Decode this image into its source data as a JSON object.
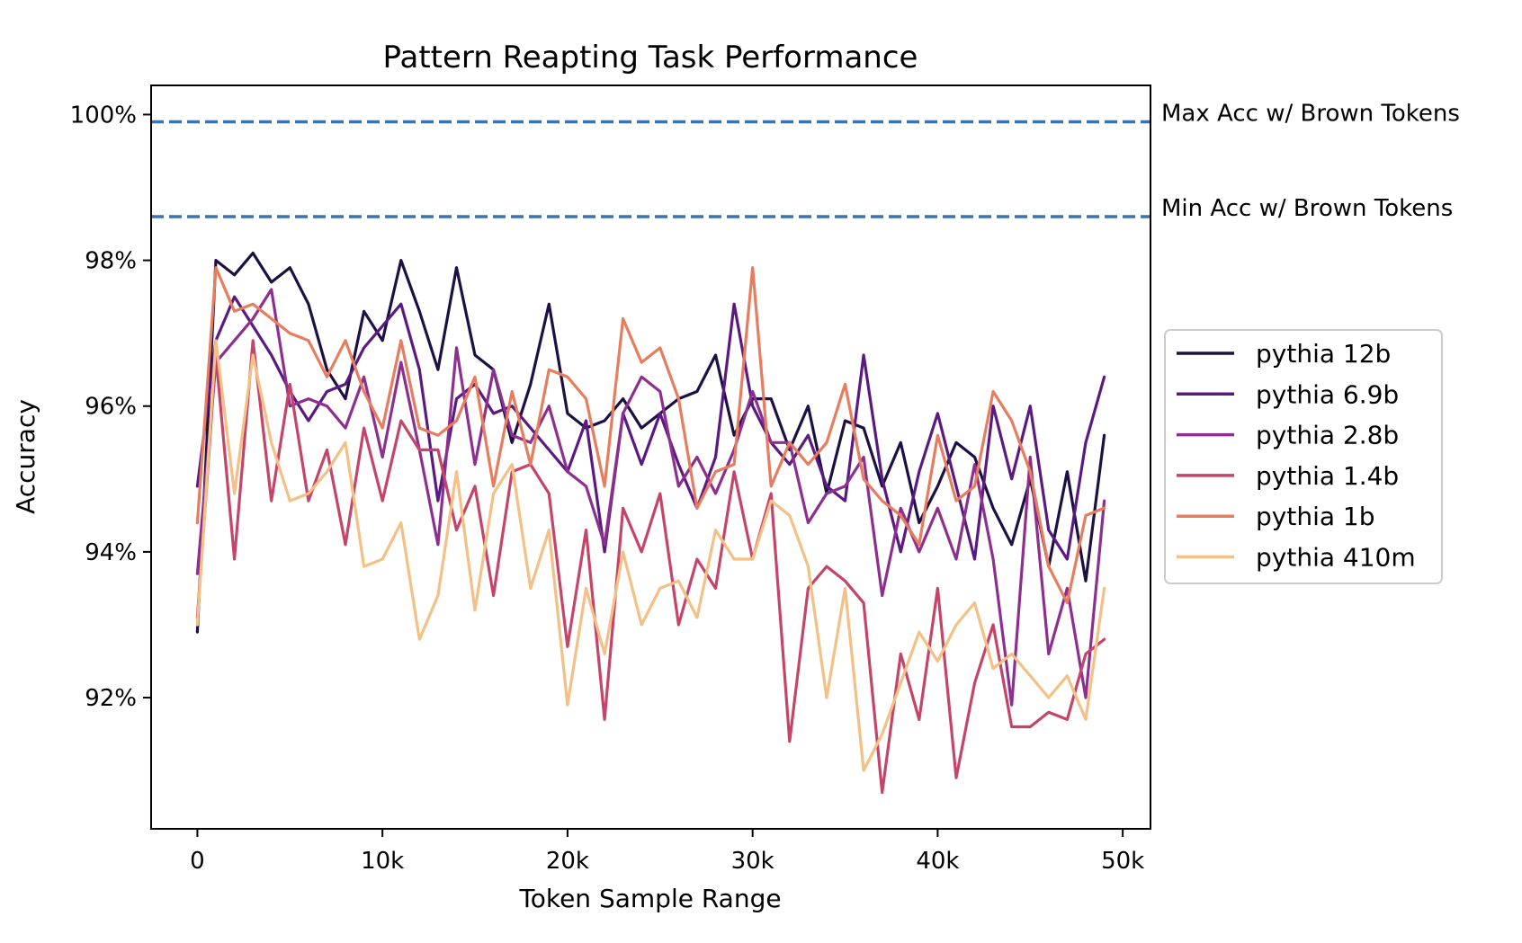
{
  "chart_data": {
    "type": "line",
    "title": "Pattern Reapting Task Performance",
    "xlabel": "Token Sample Range",
    "ylabel": "Accuracy",
    "xlim": [
      -2500,
      51500
    ],
    "ylim": [
      90.2,
      100.4
    ],
    "x_ticks": [
      {
        "value": 0,
        "label": "0"
      },
      {
        "value": 10000,
        "label": "10k"
      },
      {
        "value": 20000,
        "label": "20k"
      },
      {
        "value": 30000,
        "label": "30k"
      },
      {
        "value": 40000,
        "label": "40k"
      },
      {
        "value": 50000,
        "label": "50k"
      }
    ],
    "y_ticks": [
      {
        "value": 92,
        "label": "92%"
      },
      {
        "value": 94,
        "label": "94%"
      },
      {
        "value": 96,
        "label": "96%"
      },
      {
        "value": 98,
        "label": "98%"
      },
      {
        "value": 100,
        "label": "100%"
      }
    ],
    "grid": false,
    "legend_position": "center-right outside",
    "reference_lines": [
      {
        "label": "Max Acc w/ Brown Tokens",
        "value": 99.9,
        "color": "#3a74b0"
      },
      {
        "label": "Min Acc w/ Brown Tokens",
        "value": 98.6,
        "color": "#3a74b0"
      }
    ],
    "x": [
      0,
      1000,
      2000,
      3000,
      4000,
      5000,
      6000,
      7000,
      8000,
      9000,
      10000,
      11000,
      12000,
      13000,
      14000,
      15000,
      16000,
      17000,
      18000,
      19000,
      20000,
      21000,
      22000,
      23000,
      24000,
      25000,
      26000,
      27000,
      28000,
      29000,
      30000,
      31000,
      32000,
      33000,
      34000,
      35000,
      36000,
      37000,
      38000,
      39000,
      40000,
      41000,
      42000,
      43000,
      44000,
      45000,
      46000,
      47000,
      48000,
      49000
    ],
    "series": [
      {
        "name": "pythia 12b",
        "color": "#1c1044",
        "values": [
          92.9,
          98.0,
          97.8,
          98.1,
          97.7,
          97.9,
          97.4,
          96.5,
          96.1,
          97.3,
          96.9,
          98.0,
          97.3,
          96.5,
          97.9,
          96.7,
          96.5,
          95.5,
          96.3,
          97.4,
          95.9,
          95.7,
          95.8,
          96.1,
          95.7,
          95.9,
          96.1,
          96.2,
          96.7,
          95.6,
          96.1,
          96.1,
          95.4,
          96.0,
          94.8,
          95.8,
          95.7,
          94.9,
          95.5,
          94.4,
          94.9,
          95.5,
          95.3,
          94.6,
          94.1,
          95.0,
          93.8,
          95.1,
          93.6,
          95.6
        ]
      },
      {
        "name": "pythia 6.9b",
        "color": "#5a1a82",
        "values": [
          94.9,
          96.9,
          97.5,
          97.1,
          96.7,
          96.2,
          95.8,
          96.2,
          96.3,
          96.8,
          97.1,
          97.4,
          96.5,
          94.7,
          96.1,
          96.3,
          95.9,
          96.0,
          95.7,
          95.4,
          95.1,
          95.8,
          94.0,
          95.9,
          95.2,
          95.9,
          95.2,
          94.6,
          95.3,
          97.4,
          96.0,
          95.5,
          95.2,
          95.6,
          94.9,
          94.7,
          96.7,
          95.0,
          94.0,
          95.1,
          95.9,
          94.9,
          93.9,
          96.0,
          95.0,
          96.0,
          94.3,
          93.9,
          95.5,
          96.4
        ]
      },
      {
        "name": "pythia 2.8b",
        "color": "#8d2f8f",
        "values": [
          93.7,
          96.6,
          96.9,
          97.2,
          97.6,
          96.0,
          96.1,
          96.0,
          95.7,
          96.4,
          95.3,
          96.6,
          95.4,
          94.1,
          96.8,
          95.2,
          96.5,
          95.6,
          95.5,
          96.0,
          95.1,
          94.9,
          94.1,
          95.9,
          96.4,
          96.2,
          94.9,
          95.3,
          94.8,
          95.4,
          96.2,
          95.5,
          95.5,
          94.4,
          94.8,
          94.9,
          95.3,
          93.4,
          94.6,
          94.0,
          94.6,
          93.9,
          95.2,
          93.9,
          91.9,
          95.3,
          92.6,
          93.5,
          92.0,
          94.7
        ]
      },
      {
        "name": "pythia 1.4b",
        "color": "#c44569",
        "values": [
          93.1,
          96.7,
          93.9,
          96.9,
          94.7,
          96.3,
          94.7,
          95.4,
          94.1,
          95.7,
          94.7,
          95.8,
          95.4,
          95.4,
          94.3,
          94.9,
          93.4,
          95.1,
          95.2,
          94.8,
          92.7,
          94.3,
          91.7,
          94.6,
          94.0,
          94.8,
          93.0,
          93.9,
          93.5,
          95.1,
          93.9,
          94.8,
          91.4,
          93.5,
          93.8,
          93.6,
          93.3,
          90.7,
          92.6,
          91.7,
          93.5,
          90.9,
          92.2,
          93.0,
          91.6,
          91.6,
          91.8,
          91.7,
          92.6,
          92.8
        ]
      },
      {
        "name": "pythia 1b",
        "color": "#e67d5e",
        "values": [
          94.4,
          97.9,
          97.3,
          97.4,
          97.2,
          97.0,
          96.9,
          96.4,
          96.9,
          96.2,
          95.7,
          96.9,
          95.7,
          95.6,
          95.8,
          96.4,
          94.9,
          96.2,
          95.2,
          96.5,
          96.4,
          96.1,
          94.9,
          97.2,
          96.6,
          96.8,
          96.1,
          94.6,
          95.1,
          95.2,
          97.9,
          94.9,
          95.5,
          95.2,
          95.5,
          96.3,
          95.0,
          94.7,
          94.5,
          94.1,
          95.6,
          94.7,
          94.9,
          96.2,
          95.8,
          95.1,
          93.8,
          93.3,
          94.5,
          94.6
        ]
      },
      {
        "name": "pythia 410m",
        "color": "#f3c086",
        "values": [
          93.0,
          96.9,
          94.8,
          96.7,
          95.5,
          94.7,
          94.8,
          95.1,
          95.5,
          93.8,
          93.9,
          94.4,
          92.8,
          93.4,
          95.1,
          93.2,
          94.8,
          95.2,
          93.5,
          94.3,
          91.9,
          93.5,
          92.6,
          94.0,
          93.0,
          93.5,
          93.6,
          93.1,
          94.3,
          93.9,
          93.9,
          94.7,
          94.5,
          93.8,
          92.0,
          93.5,
          91.0,
          91.5,
          92.2,
          92.9,
          92.5,
          93.0,
          93.3,
          92.4,
          92.6,
          92.3,
          92.0,
          92.3,
          91.7,
          93.5
        ]
      }
    ]
  }
}
